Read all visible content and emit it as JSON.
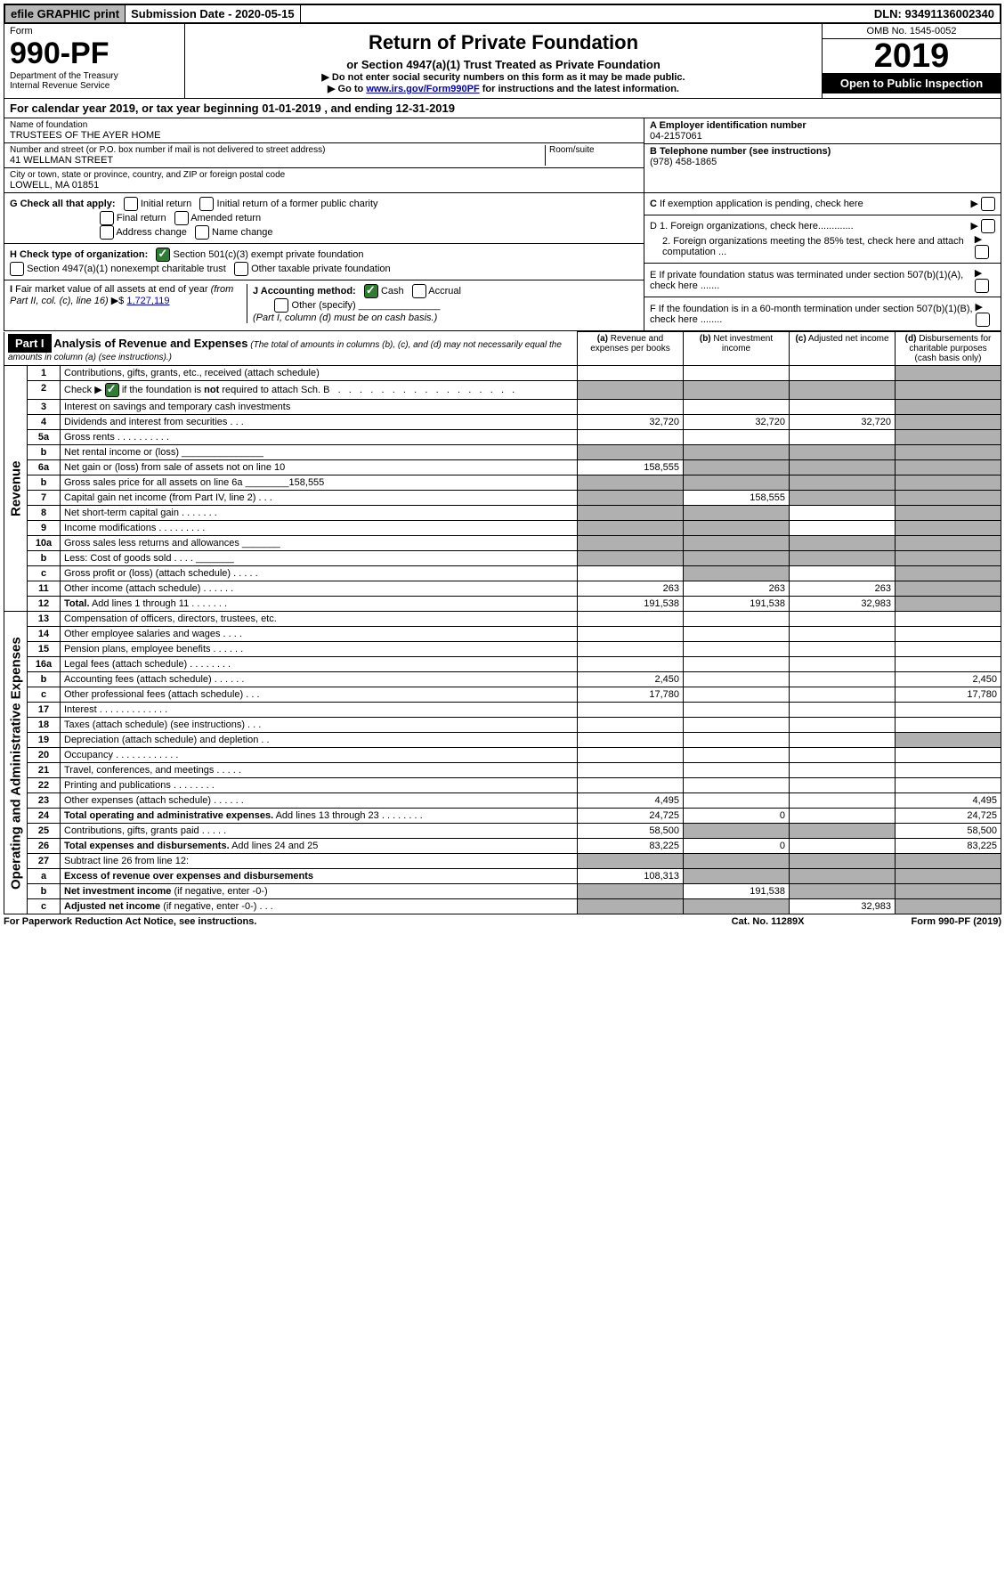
{
  "top": {
    "efile": "efile GRAPHIC print",
    "subdate": "Submission Date - 2020-05-15",
    "dln": "DLN: 93491136002340"
  },
  "header": {
    "form_label": "Form",
    "form_num": "990-PF",
    "dept1": "Department of the Treasury",
    "dept2": "Internal Revenue Service",
    "title": "Return of Private Foundation",
    "subtitle": "or Section 4947(a)(1) Trust Treated as Private Foundation",
    "note1": "▶ Do not enter social security numbers on this form as it may be made public.",
    "note2_pre": "▶ Go to ",
    "note2_link": "www.irs.gov/Form990PF",
    "note2_post": " for instructions and the latest information.",
    "omb": "OMB No. 1545-0052",
    "year": "2019",
    "open": "Open to Public Inspection"
  },
  "calyear": "For calendar year 2019, or tax year beginning 01-01-2019                       , and ending 12-31-2019",
  "info": {
    "name_label": "Name of foundation",
    "name": "TRUSTEES OF THE AYER HOME",
    "addr_label": "Number and street (or P.O. box number if mail is not delivered to street address)",
    "room_label": "Room/suite",
    "addr": "41 WELLMAN STREET",
    "city_label": "City or town, state or province, country, and ZIP or foreign postal code",
    "city": "LOWELL, MA  01851",
    "ein_label": "A Employer identification number",
    "ein": "04-2157061",
    "tel_label": "B Telephone number (see instructions)",
    "tel": "(978) 458-1865",
    "c_label": "C If exemption application is pending, check here",
    "d1": "D 1. Foreign organizations, check here.............",
    "d2": "2. Foreign organizations meeting the 85% test, check here and attach computation ...",
    "e_label": "E If private foundation status was terminated under section 507(b)(1)(A), check here .......",
    "f_label": "F If the foundation is in a 60-month termination under section 507(b)(1)(B), check here ........"
  },
  "g": {
    "label": "G Check all that apply:",
    "opts": [
      "Initial return",
      "Initial return of a former public charity",
      "Final return",
      "Amended return",
      "Address change",
      "Name change"
    ]
  },
  "h": {
    "label": "H Check type of organization:",
    "opt1": "Section 501(c)(3) exempt private foundation",
    "opt2": "Section 4947(a)(1) nonexempt charitable trust",
    "opt3": "Other taxable private foundation"
  },
  "i": {
    "label": "I Fair market value of all assets at end of year (from Part II, col. (c), line 16) ▶$ ",
    "value": "1,727,119"
  },
  "j": {
    "label": "J Accounting method:",
    "cash": "Cash",
    "accrual": "Accrual",
    "other": "Other (specify)",
    "note": "(Part I, column (d) must be on cash basis.)"
  },
  "part1": {
    "label": "Part I",
    "title": "Analysis of Revenue and Expenses",
    "title_note": "(The total of amounts in columns (b), (c), and (d) may not necessarily equal the amounts in column (a) (see instructions).)",
    "cols": {
      "a": "(a) Revenue and expenses per books",
      "b": "(b) Net investment income",
      "c": "(c) Adjusted net income",
      "d": "(d) Disbursements for charitable purposes (cash basis only)"
    }
  },
  "side_labels": {
    "rev": "Revenue",
    "exp": "Operating and Administrative Expenses"
  },
  "lines": [
    {
      "n": "1",
      "d": "Contributions, gifts, grants, etc., received (attach schedule)",
      "a": "",
      "b": "",
      "c": "",
      "dd": "",
      "bs": false,
      "cs": false,
      "ds": true
    },
    {
      "n": "2",
      "d": "Check ▶ [✓] if the foundation is <b>not</b> required to attach Sch. B  .  .  .  .  .  .  .  .  .  .  .  .  .  .  .  .  .  .",
      "a": "",
      "b": "",
      "c": "",
      "dd": "",
      "as": true,
      "bs": true,
      "cs": true,
      "ds": true
    },
    {
      "n": "3",
      "d": "Interest on savings and temporary cash investments",
      "a": "",
      "b": "",
      "c": "",
      "dd": "",
      "ds": true
    },
    {
      "n": "4",
      "d": "Dividends and interest from securities   .   .   .",
      "a": "32,720",
      "b": "32,720",
      "c": "32,720",
      "dd": "",
      "ds": true
    },
    {
      "n": "5a",
      "d": "Gross rents   .   .   .   .   .   .   .   .   .   .",
      "a": "",
      "b": "",
      "c": "",
      "dd": "",
      "ds": true
    },
    {
      "n": "b",
      "d": "Net rental income or (loss) _______________",
      "a": "",
      "b": "",
      "c": "",
      "dd": "",
      "as": true,
      "bs": true,
      "cs": true,
      "ds": true
    },
    {
      "n": "6a",
      "d": "Net gain or (loss) from sale of assets not on line 10",
      "a": "158,555",
      "b": "",
      "c": "",
      "dd": "",
      "bs": true,
      "cs": true,
      "ds": true
    },
    {
      "n": "b",
      "d": "Gross sales price for all assets on line 6a ________158,555",
      "a": "",
      "b": "",
      "c": "",
      "dd": "",
      "as": true,
      "bs": true,
      "cs": true,
      "ds": true
    },
    {
      "n": "7",
      "d": "Capital gain net income (from Part IV, line 2)   .   .   .",
      "a": "",
      "b": "158,555",
      "c": "",
      "dd": "",
      "as": true,
      "cs": true,
      "ds": true
    },
    {
      "n": "8",
      "d": "Net short-term capital gain   .   .   .   .   .   .   .",
      "a": "",
      "b": "",
      "c": "",
      "dd": "",
      "as": true,
      "bs": true,
      "ds": true
    },
    {
      "n": "9",
      "d": "Income modifications   .   .   .   .   .   .   .   .   .",
      "a": "",
      "b": "",
      "c": "",
      "dd": "",
      "as": true,
      "bs": true,
      "ds": true
    },
    {
      "n": "10a",
      "d": "Gross sales less returns and allowances  _______",
      "a": "",
      "b": "",
      "c": "",
      "dd": "",
      "as": true,
      "bs": true,
      "cs": true,
      "ds": true
    },
    {
      "n": "b",
      "d": "Less: Cost of goods sold   .   .   .   .  _______",
      "a": "",
      "b": "",
      "c": "",
      "dd": "",
      "as": true,
      "bs": true,
      "cs": true,
      "ds": true
    },
    {
      "n": "c",
      "d": "Gross profit or (loss) (attach schedule)   .   .   .   .   .",
      "a": "",
      "b": "",
      "c": "",
      "dd": "",
      "bs": true,
      "ds": true
    },
    {
      "n": "11",
      "d": "Other income (attach schedule)   .   .   .   .   .   .",
      "a": "263",
      "b": "263",
      "c": "263",
      "dd": "",
      "ds": true
    },
    {
      "n": "12",
      "d": "<b>Total.</b> Add lines 1 through 11   .   .   .   .   .   .   .",
      "a": "191,538",
      "b": "191,538",
      "c": "32,983",
      "dd": "",
      "ds": true
    }
  ],
  "exp_lines": [
    {
      "n": "13",
      "d": "Compensation of officers, directors, trustees, etc.",
      "a": "",
      "b": "",
      "c": "",
      "dd": ""
    },
    {
      "n": "14",
      "d": "Other employee salaries and wages   .   .   .   .",
      "a": "",
      "b": "",
      "c": "",
      "dd": ""
    },
    {
      "n": "15",
      "d": "Pension plans, employee benefits   .   .   .   .   .   .",
      "a": "",
      "b": "",
      "c": "",
      "dd": ""
    },
    {
      "n": "16a",
      "d": "Legal fees (attach schedule)   .   .   .   .   .   .   .   .",
      "a": "",
      "b": "",
      "c": "",
      "dd": ""
    },
    {
      "n": "b",
      "d": "Accounting fees (attach schedule)   .   .   .   .   .   .",
      "a": "2,450",
      "b": "",
      "c": "",
      "dd": "2,450"
    },
    {
      "n": "c",
      "d": "Other professional fees (attach schedule)   .   .   .",
      "a": "17,780",
      "b": "",
      "c": "",
      "dd": "17,780"
    },
    {
      "n": "17",
      "d": "Interest   .   .   .   .   .   .   .   .   .   .   .   .   .",
      "a": "",
      "b": "",
      "c": "",
      "dd": ""
    },
    {
      "n": "18",
      "d": "Taxes (attach schedule) (see instructions)   .   .   .",
      "a": "",
      "b": "",
      "c": "",
      "dd": ""
    },
    {
      "n": "19",
      "d": "Depreciation (attach schedule) and depletion   .   .",
      "a": "",
      "b": "",
      "c": "",
      "dd": "",
      "ds": true
    },
    {
      "n": "20",
      "d": "Occupancy   .   .   .   .   .   .   .   .   .   .   .   .",
      "a": "",
      "b": "",
      "c": "",
      "dd": ""
    },
    {
      "n": "21",
      "d": "Travel, conferences, and meetings   .   .   .   .   .",
      "a": "",
      "b": "",
      "c": "",
      "dd": ""
    },
    {
      "n": "22",
      "d": "Printing and publications   .   .   .   .   .   .   .   .",
      "a": "",
      "b": "",
      "c": "",
      "dd": ""
    },
    {
      "n": "23",
      "d": "Other expenses (attach schedule)   .   .   .   .   .   .",
      "a": "4,495",
      "b": "",
      "c": "",
      "dd": "4,495"
    },
    {
      "n": "24",
      "d": "<b>Total operating and administrative expenses.</b> Add lines 13 through 23   .   .   .   .   .   .   .   .",
      "a": "24,725",
      "b": "0",
      "c": "",
      "dd": "24,725"
    },
    {
      "n": "25",
      "d": "Contributions, gifts, grants paid   .   .   .   .   .",
      "a": "58,500",
      "b": "",
      "c": "",
      "dd": "58,500",
      "bs": true,
      "cs": true
    },
    {
      "n": "26",
      "d": "<b>Total expenses and disbursements.</b> Add lines 24 and 25",
      "a": "83,225",
      "b": "0",
      "c": "",
      "dd": "83,225"
    },
    {
      "n": "27",
      "d": "Subtract line 26 from line 12:",
      "a": "",
      "b": "",
      "c": "",
      "dd": "",
      "as": true,
      "bs": true,
      "cs": true,
      "ds": true
    },
    {
      "n": "a",
      "d": "<b>Excess of revenue over expenses and disbursements</b>",
      "a": "108,313",
      "b": "",
      "c": "",
      "dd": "",
      "bs": true,
      "cs": true,
      "ds": true
    },
    {
      "n": "b",
      "d": "<b>Net investment income</b> (if negative, enter -0-)",
      "a": "",
      "b": "191,538",
      "c": "",
      "dd": "",
      "as": true,
      "cs": true,
      "ds": true
    },
    {
      "n": "c",
      "d": "<b>Adjusted net income</b> (if negative, enter -0-)   .   .   .",
      "a": "",
      "b": "",
      "c": "32,983",
      "dd": "",
      "as": true,
      "bs": true,
      "ds": true
    }
  ],
  "footer": {
    "left": "For Paperwork Reduction Act Notice, see instructions.",
    "mid": "Cat. No. 11289X",
    "right": "Form 990-PF (2019)"
  }
}
